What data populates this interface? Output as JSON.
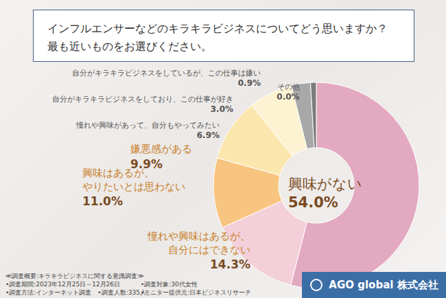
{
  "chart_data": {
    "type": "pie",
    "title": "インフルエンサーなどのキラキラビジネスについてどう思いますか？",
    "subtitle": "最も近いものをお選びください。",
    "categories": [
      "興味がない",
      "憧れや興味はあるが、\n自分にはできない",
      "興味はあるが、\nやりたいとは思わない",
      "嫌悪感がある",
      "憧れや興味があって、自分もやってみたい",
      "自分がキラキラビジネスをしており、この仕事が好き",
      "自分がキラキラビジネスをしているが、この仕事は嫌い",
      "その他"
    ],
    "values": [
      54.0,
      14.3,
      11.0,
      9.9,
      6.9,
      3.0,
      0.9,
      0.0
    ],
    "value_labels": [
      "54.0%",
      "14.3%",
      "11.0%",
      "9.9%",
      "6.9%",
      "3.0%",
      "0.9%",
      "0.0%"
    ],
    "colors": [
      "#e3a9c0",
      "#f3d0d9",
      "#f8c580",
      "#fbe7ae",
      "#fdf3d3",
      "#a8a8a8",
      "#7c7c7c",
      "#dcdcdc"
    ],
    "data_labels": true,
    "notes_left": [
      "≪調査概要:キラキラビジネスに関する意識調査≫",
      "•調査期間:2023年12月25日～12月26日",
      "•調査方法:インターネット調査　•調査人数:335人"
    ],
    "notes_right": [
      "•調査対象:30代女性",
      "•モニター提供元:日本ビジネスリサーチ"
    ],
    "logo_text": "AGO global 株式会社"
  }
}
